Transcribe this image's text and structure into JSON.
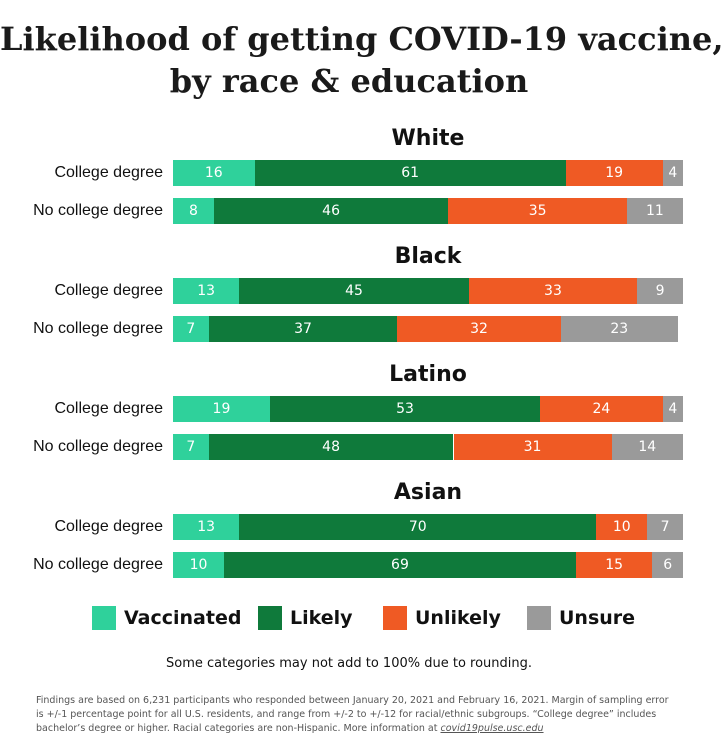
{
  "title_lines": [
    "Likelihood of getting COVID-19 vaccine,",
    "by race & education"
  ],
  "colors": {
    "Vaccinated": "#2fd19b",
    "Likely": "#0f7a3b",
    "Unlikely": "#ef5a24",
    "Unsure": "#9a9a9a"
  },
  "chart_data": {
    "type": "bar",
    "orientation": "horizontal",
    "stacked": true,
    "title": "Likelihood of getting COVID-19 vaccine, by race & education",
    "series_names": [
      "Vaccinated",
      "Likely",
      "Unlikely",
      "Unsure"
    ],
    "groups": [
      {
        "name": "White",
        "rows": [
          {
            "label": "College degree",
            "values": [
              16,
              61,
              19,
              4
            ]
          },
          {
            "label": "No college degree",
            "values": [
              8,
              46,
              35,
              11
            ]
          }
        ]
      },
      {
        "name": "Black",
        "rows": [
          {
            "label": "College degree",
            "values": [
              13,
              45,
              33,
              9
            ]
          },
          {
            "label": "No college degree",
            "values": [
              7,
              37,
              32,
              23
            ]
          }
        ]
      },
      {
        "name": "Latino",
        "rows": [
          {
            "label": "College degree",
            "values": [
              19,
              53,
              24,
              4
            ]
          },
          {
            "label": "No college degree",
            "values": [
              7,
              48,
              31,
              14
            ]
          }
        ]
      },
      {
        "name": "Asian",
        "rows": [
          {
            "label": "College degree",
            "values": [
              13,
              70,
              10,
              7
            ]
          },
          {
            "label": "No college degree",
            "values": [
              10,
              69,
              15,
              6
            ]
          }
        ]
      }
    ],
    "legend": [
      "Vaccinated",
      "Likely",
      "Unlikely",
      "Unsure"
    ],
    "xlim": [
      0,
      100
    ]
  },
  "note": "Some categories may not add to 100% due to rounding.",
  "footnote": {
    "text": "Findings are based on 6,231 participants who responded between January 20, 2021 and February 16, 2021. Margin of sampling error is +/-1 percentage point for all U.S. residents, and range from +/-2 to +/-12 for racial/ethnic subgroups. “College degree” includes bachelor’s degree or higher. Racial categories are non-Hispanic. More information at ",
    "link": "covid19pulse.usc.edu"
  }
}
